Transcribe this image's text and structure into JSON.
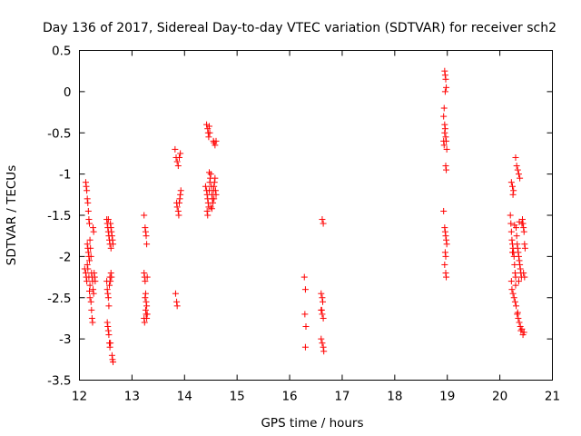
{
  "chart_data": {
    "type": "scatter",
    "title": "Day 136 of 2017, Sidereal Day-to-day VTEC variation (SDTVAR) for receiver sch2",
    "xlabel": "GPS time / hours",
    "ylabel": "SDTVAR / TECUs",
    "xlim": [
      12,
      21
    ],
    "ylim": [
      -3.5,
      0.5
    ],
    "x_ticks": [
      12,
      13,
      14,
      15,
      16,
      17,
      18,
      19,
      20,
      21
    ],
    "y_ticks": [
      0.5,
      0,
      -0.5,
      -1,
      -1.5,
      -2,
      -2.5,
      -3,
      -3.5
    ],
    "x_tick_labels": [
      "12",
      "13",
      "14",
      "15",
      "16",
      "17",
      "18",
      "19",
      "20",
      "21"
    ],
    "y_tick_labels": [
      "0.5",
      "0",
      "-0.5",
      "-1",
      "-1.5",
      "-2",
      "-2.5",
      "-3",
      "-3.5"
    ],
    "marker": "plus",
    "color": "#ff0000",
    "series": [
      {
        "name": "SDTVAR",
        "points": [
          [
            12.12,
            -1.1
          ],
          [
            12.13,
            -1.15
          ],
          [
            12.14,
            -1.2
          ],
          [
            12.15,
            -1.3
          ],
          [
            12.16,
            -1.35
          ],
          [
            12.17,
            -1.45
          ],
          [
            12.18,
            -1.55
          ],
          [
            12.19,
            -1.6
          ],
          [
            12.15,
            -1.85
          ],
          [
            12.16,
            -1.9
          ],
          [
            12.17,
            -1.95
          ],
          [
            12.18,
            -2.0
          ],
          [
            12.19,
            -2.05
          ],
          [
            12.1,
            -2.15
          ],
          [
            12.12,
            -2.2
          ],
          [
            12.13,
            -2.25
          ],
          [
            12.14,
            -2.3
          ],
          [
            12.15,
            -2.1
          ],
          [
            12.16,
            -2.15
          ],
          [
            12.2,
            -1.8
          ],
          [
            12.21,
            -1.9
          ],
          [
            12.22,
            -2.0
          ],
          [
            12.23,
            -2.2
          ],
          [
            12.24,
            -2.25
          ],
          [
            12.25,
            -2.3
          ],
          [
            12.26,
            -2.4
          ],
          [
            12.27,
            -2.45
          ],
          [
            12.2,
            -2.5
          ],
          [
            12.22,
            -2.55
          ],
          [
            12.23,
            -2.65
          ],
          [
            12.24,
            -2.75
          ],
          [
            12.25,
            -2.8
          ],
          [
            12.26,
            -1.65
          ],
          [
            12.27,
            -1.7
          ],
          [
            12.28,
            -2.2
          ],
          [
            12.29,
            -2.25
          ],
          [
            12.3,
            -2.3
          ],
          [
            12.18,
            -2.25
          ],
          [
            12.2,
            -2.35
          ],
          [
            12.19,
            -2.42
          ],
          [
            12.52,
            -1.55
          ],
          [
            12.53,
            -1.6
          ],
          [
            12.54,
            -1.65
          ],
          [
            12.55,
            -1.7
          ],
          [
            12.56,
            -1.75
          ],
          [
            12.57,
            -1.8
          ],
          [
            12.58,
            -1.85
          ],
          [
            12.59,
            -1.6
          ],
          [
            12.6,
            -1.65
          ],
          [
            12.61,
            -1.7
          ],
          [
            12.62,
            -1.75
          ],
          [
            12.63,
            -1.8
          ],
          [
            12.64,
            -1.85
          ],
          [
            12.52,
            -2.3
          ],
          [
            12.53,
            -2.4
          ],
          [
            12.54,
            -2.45
          ],
          [
            12.55,
            -2.5
          ],
          [
            12.56,
            -2.6
          ],
          [
            12.57,
            -2.35
          ],
          [
            12.58,
            -2.25
          ],
          [
            12.59,
            -2.3
          ],
          [
            12.6,
            -2.2
          ],
          [
            12.61,
            -2.25
          ],
          [
            12.53,
            -2.8
          ],
          [
            12.54,
            -2.85
          ],
          [
            12.55,
            -2.9
          ],
          [
            12.56,
            -2.95
          ],
          [
            12.57,
            -3.05
          ],
          [
            12.58,
            -3.1
          ],
          [
            12.59,
            -3.05
          ],
          [
            12.62,
            -3.2
          ],
          [
            12.63,
            -3.25
          ],
          [
            12.64,
            -3.28
          ],
          [
            12.55,
            -1.55
          ],
          [
            12.6,
            -1.9
          ],
          [
            13.23,
            -1.5
          ],
          [
            13.25,
            -1.65
          ],
          [
            13.26,
            -1.7
          ],
          [
            13.27,
            -1.75
          ],
          [
            13.28,
            -1.85
          ],
          [
            13.23,
            -2.2
          ],
          [
            13.24,
            -2.25
          ],
          [
            13.25,
            -2.3
          ],
          [
            13.26,
            -2.45
          ],
          [
            13.27,
            -2.55
          ],
          [
            13.28,
            -2.6
          ],
          [
            13.29,
            -2.7
          ],
          [
            13.23,
            -2.75
          ],
          [
            13.24,
            -2.8
          ],
          [
            13.25,
            -2.5
          ],
          [
            13.26,
            -2.65
          ],
          [
            13.27,
            -2.7
          ],
          [
            13.28,
            -2.75
          ],
          [
            13.29,
            -2.25
          ],
          [
            13.82,
            -0.7
          ],
          [
            13.84,
            -0.8
          ],
          [
            13.86,
            -0.85
          ],
          [
            13.88,
            -0.9
          ],
          [
            13.9,
            -0.8
          ],
          [
            13.92,
            -0.75
          ],
          [
            13.85,
            -1.35
          ],
          [
            13.86,
            -1.4
          ],
          [
            13.88,
            -1.45
          ],
          [
            13.89,
            -1.5
          ],
          [
            13.9,
            -1.35
          ],
          [
            13.91,
            -1.3
          ],
          [
            13.92,
            -1.25
          ],
          [
            13.93,
            -1.2
          ],
          [
            13.83,
            -2.45
          ],
          [
            13.85,
            -2.55
          ],
          [
            13.86,
            -2.6
          ],
          [
            14.42,
            -0.4
          ],
          [
            14.44,
            -0.45
          ],
          [
            14.45,
            -0.5
          ],
          [
            14.46,
            -0.55
          ],
          [
            14.47,
            -0.42
          ],
          [
            14.48,
            -0.5
          ],
          [
            14.55,
            -0.6
          ],
          [
            14.56,
            -0.62
          ],
          [
            14.58,
            -0.65
          ],
          [
            14.6,
            -0.6
          ],
          [
            14.4,
            -1.15
          ],
          [
            14.42,
            -1.2
          ],
          [
            14.43,
            -1.25
          ],
          [
            14.44,
            -1.3
          ],
          [
            14.45,
            -1.35
          ],
          [
            14.46,
            -1.4
          ],
          [
            14.47,
            -1.2
          ],
          [
            14.48,
            -1.1
          ],
          [
            14.49,
            -1.05
          ],
          [
            14.5,
            -1.0
          ],
          [
            14.51,
            -1.15
          ],
          [
            14.52,
            -1.25
          ],
          [
            14.53,
            -1.3
          ],
          [
            14.54,
            -1.35
          ],
          [
            14.55,
            -1.2
          ],
          [
            14.56,
            -1.15
          ],
          [
            14.57,
            -1.1
          ],
          [
            14.58,
            -1.05
          ],
          [
            14.59,
            -1.2
          ],
          [
            14.6,
            -1.25
          ],
          [
            14.43,
            -1.45
          ],
          [
            14.44,
            -1.5
          ],
          [
            14.47,
            -0.98
          ],
          [
            14.5,
            -1.4
          ],
          [
            14.52,
            -1.42
          ],
          [
            14.56,
            -1.3
          ],
          [
            16.28,
            -2.25
          ],
          [
            16.3,
            -2.4
          ],
          [
            16.29,
            -2.7
          ],
          [
            16.31,
            -2.85
          ],
          [
            16.3,
            -3.1
          ],
          [
            16.62,
            -1.55
          ],
          [
            16.64,
            -1.6
          ],
          [
            16.6,
            -2.45
          ],
          [
            16.62,
            -2.5
          ],
          [
            16.63,
            -2.55
          ],
          [
            16.6,
            -2.65
          ],
          [
            16.62,
            -2.7
          ],
          [
            16.64,
            -2.75
          ],
          [
            16.61,
            -2.65
          ],
          [
            16.6,
            -3.0
          ],
          [
            16.62,
            -3.05
          ],
          [
            16.64,
            -3.1
          ],
          [
            16.65,
            -3.15
          ],
          [
            18.95,
            0.25
          ],
          [
            18.96,
            0.2
          ],
          [
            18.97,
            0.15
          ],
          [
            18.98,
            0.05
          ],
          [
            18.96,
            0.0
          ],
          [
            18.94,
            -0.2
          ],
          [
            18.93,
            -0.3
          ],
          [
            18.95,
            -0.4
          ],
          [
            18.96,
            -0.45
          ],
          [
            18.97,
            -0.55
          ],
          [
            18.93,
            -0.6
          ],
          [
            18.94,
            -0.65
          ],
          [
            18.95,
            -0.5
          ],
          [
            18.98,
            -0.6
          ],
          [
            18.99,
            -0.7
          ],
          [
            18.97,
            -0.9
          ],
          [
            18.98,
            -0.95
          ],
          [
            18.93,
            -1.45
          ],
          [
            18.95,
            -1.65
          ],
          [
            18.96,
            -1.7
          ],
          [
            18.97,
            -1.75
          ],
          [
            18.98,
            -1.8
          ],
          [
            18.99,
            -1.85
          ],
          [
            18.96,
            -1.95
          ],
          [
            18.97,
            -2.0
          ],
          [
            18.95,
            -2.1
          ],
          [
            18.97,
            -2.2
          ],
          [
            18.98,
            -2.25
          ],
          [
            20.22,
            -1.1
          ],
          [
            20.24,
            -1.15
          ],
          [
            20.25,
            -1.25
          ],
          [
            20.26,
            -1.2
          ],
          [
            20.3,
            -0.8
          ],
          [
            20.32,
            -0.9
          ],
          [
            20.34,
            -0.95
          ],
          [
            20.36,
            -1.0
          ],
          [
            20.38,
            -1.05
          ],
          [
            20.2,
            -1.5
          ],
          [
            20.21,
            -1.6
          ],
          [
            20.22,
            -1.7
          ],
          [
            20.23,
            -1.8
          ],
          [
            20.24,
            -1.85
          ],
          [
            20.25,
            -1.9
          ],
          [
            20.26,
            -1.95
          ],
          [
            20.27,
            -2.0
          ],
          [
            20.28,
            -2.1
          ],
          [
            20.29,
            -2.2
          ],
          [
            20.3,
            -2.25
          ],
          [
            20.31,
            -1.65
          ],
          [
            20.32,
            -1.75
          ],
          [
            20.33,
            -1.85
          ],
          [
            20.34,
            -1.9
          ],
          [
            20.35,
            -1.95
          ],
          [
            20.36,
            -2.0
          ],
          [
            20.37,
            -2.05
          ],
          [
            20.38,
            -2.1
          ],
          [
            20.39,
            -2.15
          ],
          [
            20.4,
            -2.2
          ],
          [
            20.41,
            -2.25
          ],
          [
            20.42,
            -1.6
          ],
          [
            20.43,
            -1.55
          ],
          [
            20.44,
            -1.6
          ],
          [
            20.45,
            -1.65
          ],
          [
            20.46,
            -1.7
          ],
          [
            20.47,
            -1.85
          ],
          [
            20.48,
            -1.9
          ],
          [
            20.22,
            -2.3
          ],
          [
            20.23,
            -2.4
          ],
          [
            20.25,
            -2.45
          ],
          [
            20.27,
            -2.5
          ],
          [
            20.29,
            -2.55
          ],
          [
            20.31,
            -2.6
          ],
          [
            20.33,
            -2.7
          ],
          [
            20.35,
            -2.75
          ],
          [
            20.37,
            -2.8
          ],
          [
            20.39,
            -2.85
          ],
          [
            20.3,
            -2.35
          ],
          [
            20.36,
            -2.3
          ],
          [
            20.4,
            -2.9
          ],
          [
            20.42,
            -2.88
          ],
          [
            20.44,
            -2.95
          ],
          [
            20.46,
            -2.92
          ],
          [
            20.34,
            -2.68
          ],
          [
            20.45,
            -2.2
          ],
          [
            20.47,
            -2.25
          ],
          [
            20.28,
            -1.62
          ],
          [
            20.37,
            -1.58
          ],
          [
            20.24,
            -1.95
          ]
        ]
      }
    ]
  }
}
